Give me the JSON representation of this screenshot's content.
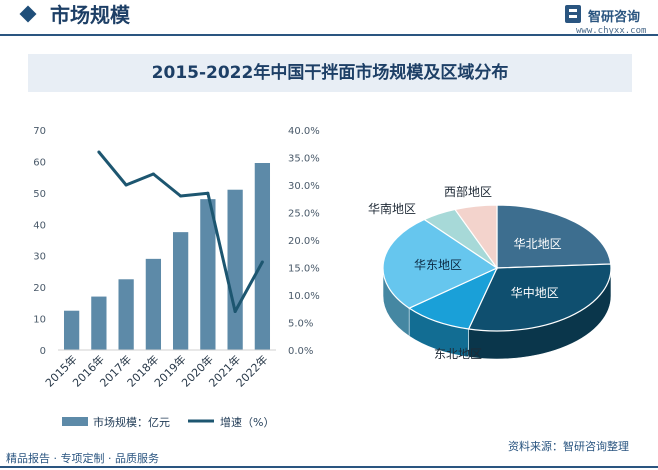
{
  "header": {
    "title": "市场规模"
  },
  "brand": {
    "name": "智研咨询",
    "site": "www.chyxx.com"
  },
  "chart_title": "2015-2022年中国干拌面市场规模及区域分布",
  "footer": {
    "left": "精品报告 · 专项定制 · 品质服务",
    "right": "资料来源：智研咨询整理"
  },
  "colors": {
    "bar": "#5d8aa8",
    "line": "#1d5670",
    "title_band": "#e8eef5"
  },
  "chart_data": [
    {
      "type": "bar+line",
      "categories": [
        "2015年",
        "2016年",
        "2017年",
        "2018年",
        "2019年",
        "2020年",
        "2021年",
        "2022年"
      ],
      "series": [
        {
          "name": "市场规模：亿元",
          "type": "bar",
          "axis": "left",
          "values": [
            12.5,
            17,
            22.5,
            29,
            37.5,
            48,
            51,
            59.5
          ]
        },
        {
          "name": "增速（%）",
          "type": "line",
          "axis": "right",
          "values": [
            null,
            36,
            30,
            32,
            28,
            28.5,
            7,
            16
          ]
        }
      ],
      "ylim_left": [
        0,
        70
      ],
      "yticks_left": [
        "0",
        "10",
        "20",
        "30",
        "40",
        "50",
        "60",
        "70"
      ],
      "ylim_right": [
        0,
        40
      ],
      "yticks_right": [
        "0.0%",
        "5.0%",
        "10.0%",
        "15.0%",
        "20.0%",
        "25.0%",
        "30.0%",
        "35.0%",
        "40.0%"
      ],
      "legend": [
        "市场规模：亿元",
        "增速（%）"
      ],
      "legend_position": "bottom"
    },
    {
      "type": "pie",
      "style": "3d",
      "slices": [
        {
          "label": "华北地区",
          "value": 24,
          "color": "#3d6e8f"
        },
        {
          "label": "华中地区",
          "value": 30,
          "color": "#0f4f6f"
        },
        {
          "label": "东北地区",
          "value": 10,
          "color": "#1aa0d8"
        },
        {
          "label": "华东地区",
          "value": 25,
          "color": "#66c6ee"
        },
        {
          "label": "华南地区",
          "value": 5,
          "color": "#a7d9d8"
        },
        {
          "label": "西部地区",
          "value": 6,
          "color": "#f3d3cc"
        }
      ]
    }
  ]
}
